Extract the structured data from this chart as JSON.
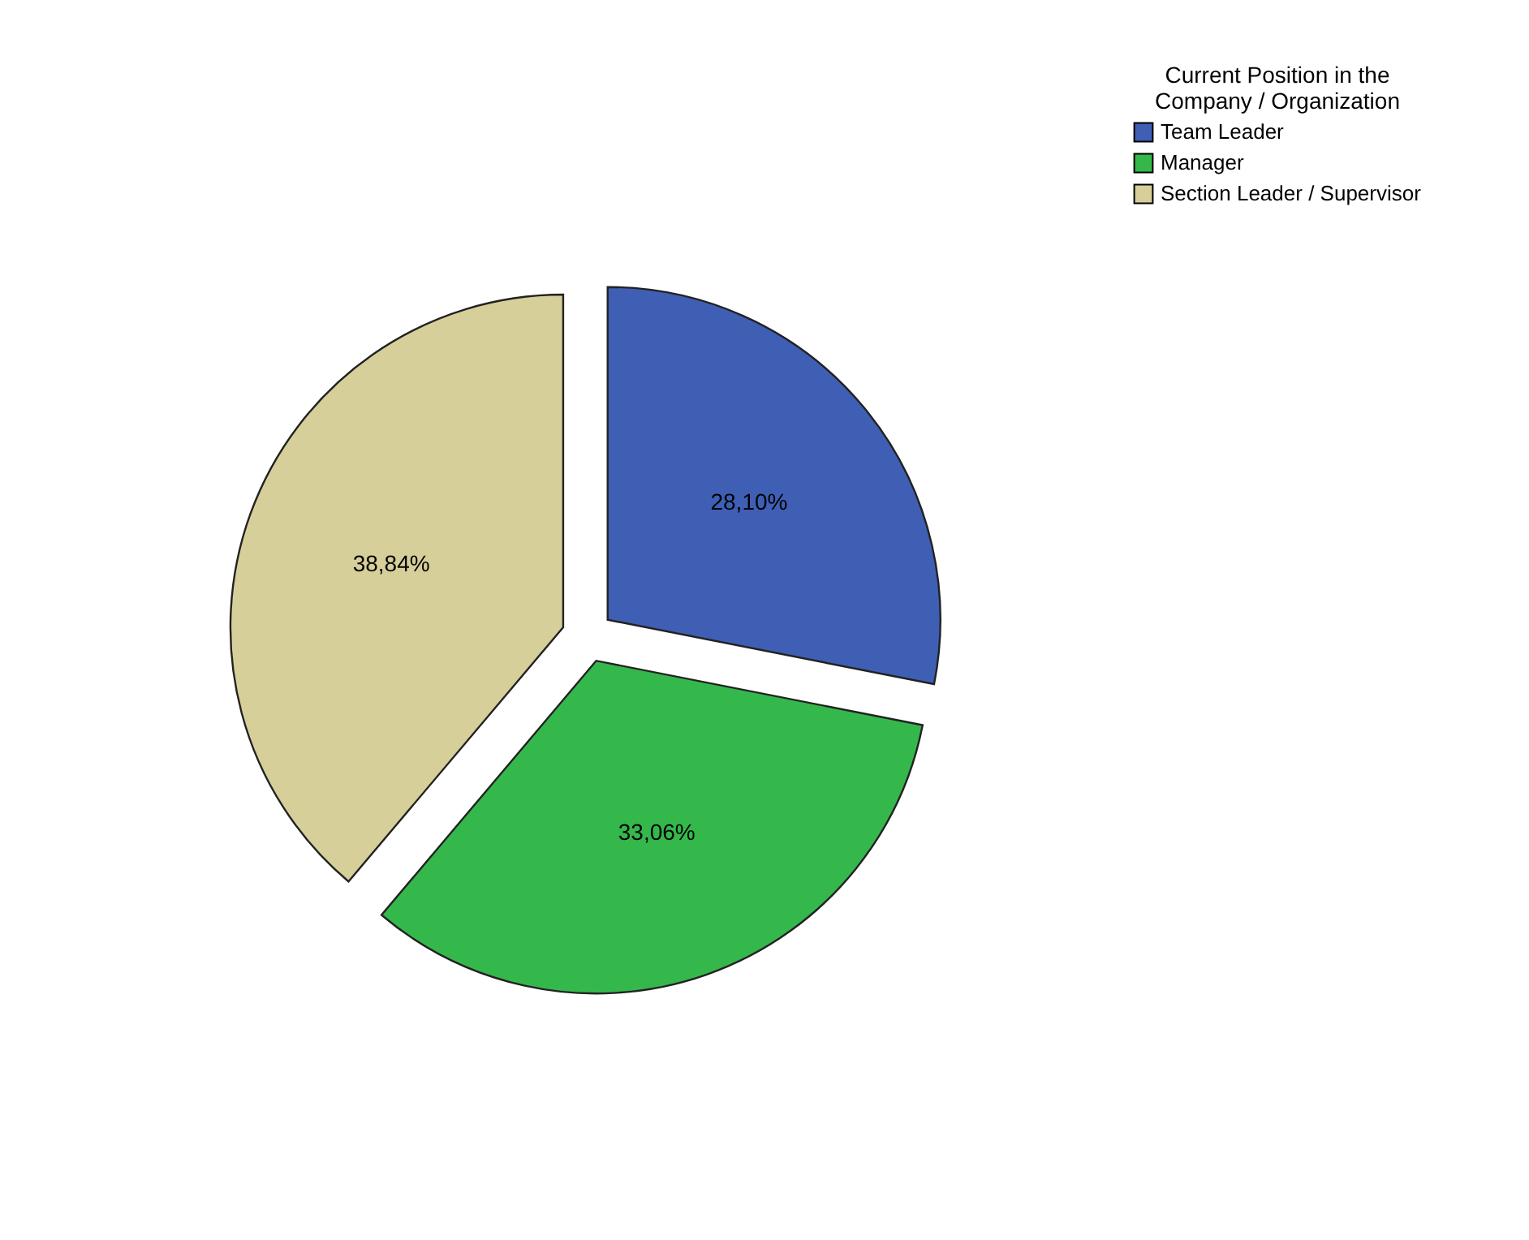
{
  "chart_data": {
    "type": "pie",
    "legend_title": "Current Position in the Company / Organization",
    "categories": [
      "Team Leader",
      "Manager",
      "Section Leader / Supervisor"
    ],
    "values": [
      28.1,
      33.06,
      38.84
    ],
    "colors": [
      "#3f5fb5",
      "#35b84b",
      "#d6cf9a"
    ],
    "value_labels": [
      "28,10%",
      "33,06%",
      "38,84%"
    ],
    "legend": "top right"
  }
}
